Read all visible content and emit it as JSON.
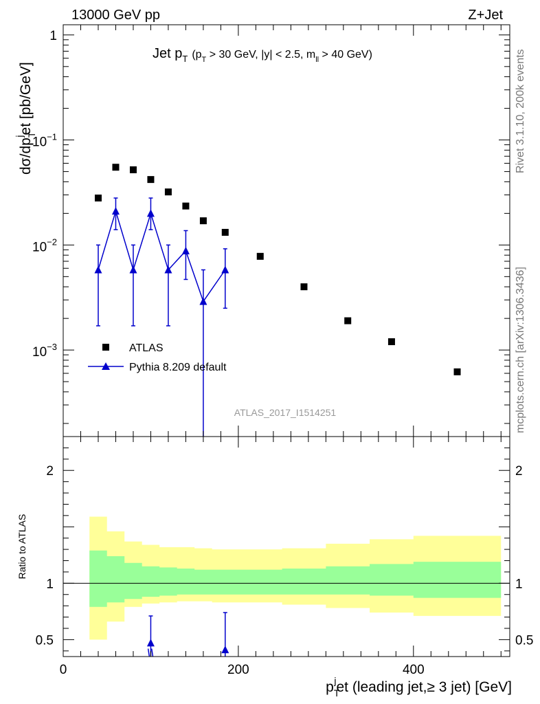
{
  "header": {
    "energy_label": "13000 GeV pp",
    "process_label": "Z+Jet"
  },
  "side_labels": {
    "rivet": "Rivet 3.1.10,  200k events",
    "mcplots": "mcplots.cern.ch [arXiv:1306.3436]"
  },
  "chart_data": {
    "type": "scatter",
    "title": {
      "main": "Jet p",
      "main_sub": "T",
      "cut_open": "(p",
      "cut_sub": "T",
      "cut_mid": " > 30 GeV, |y| < 2.5, m",
      "cut_sub2": "ll",
      "cut_close": " > 40 GeV)"
    },
    "watermark": "ATLAS_2017_I1514251",
    "ylabel": {
      "part1": "dσ/dp",
      "sub": "T",
      "sup": "j",
      "part2": "et [pb/GeV]"
    },
    "xlabel": {
      "part1": "p",
      "sub": "T",
      "sup": "j",
      "part2": "et (leading jet,≥ 3 jet) [GeV]"
    },
    "ratio_ylabel": "Ratio to ATLAS",
    "xlim": [
      0,
      510
    ],
    "ylim": [
      0.00015,
      1.25
    ],
    "yscale": "log",
    "ratio_ylim": [
      0.35,
      2.3
    ],
    "x_ticks": [
      {
        "value": 0,
        "label": "0"
      },
      {
        "value": 200,
        "label": "200"
      },
      {
        "value": 400,
        "label": "400"
      }
    ],
    "y_ticks": [
      {
        "value": 1,
        "label": "1",
        "base": "",
        "exp": ""
      },
      {
        "value": 0.1,
        "label": "",
        "base": "10",
        "exp": "−1"
      },
      {
        "value": 0.01,
        "label": "",
        "base": "10",
        "exp": "−2"
      },
      {
        "value": 0.001,
        "label": "",
        "base": "10",
        "exp": "−3"
      }
    ],
    "ratio_y_ticks": [
      {
        "value": 2,
        "label": "2"
      },
      {
        "value": 1,
        "label": "1"
      },
      {
        "value": 0.5,
        "label": "0.5"
      }
    ],
    "legend": {
      "placement": "lower-left",
      "entries": [
        "ATLAS",
        "Pythia 8.209 default"
      ]
    },
    "series": [
      {
        "name": "ATLAS",
        "color": "#000000",
        "marker": "square",
        "x": [
          40,
          60,
          80,
          100,
          120,
          140,
          160,
          185,
          225,
          275,
          325,
          375,
          450
        ],
        "y": [
          0.028,
          0.055,
          0.052,
          0.042,
          0.032,
          0.0235,
          0.017,
          0.0132,
          0.0078,
          0.004,
          0.0019,
          0.0012,
          0.00062
        ]
      },
      {
        "name": "Pythia 8.209 default",
        "color": "#0000cc",
        "marker": "triangle",
        "x": [
          40,
          60,
          80,
          100,
          120,
          140,
          160,
          185
        ],
        "y": [
          0.0058,
          0.021,
          0.0058,
          0.02,
          0.0058,
          0.0088,
          0.0029,
          0.0058
        ],
        "y_lo": [
          0.0017,
          0.014,
          0.0017,
          0.014,
          0.0017,
          0.0047,
          1e-05,
          0.0025
        ],
        "y_hi": [
          0.01,
          0.028,
          0.01,
          0.028,
          0.01,
          0.0137,
          0.0058,
          0.0092
        ]
      }
    ],
    "ratio": {
      "reference_line": 1,
      "bands": {
        "edges": [
          30,
          50,
          70,
          90,
          110,
          130,
          150,
          170,
          200,
          250,
          300,
          350,
          400,
          500
        ],
        "inner_lo": [
          0.79,
          0.83,
          0.86,
          0.88,
          0.89,
          0.9,
          0.9,
          0.9,
          0.9,
          0.9,
          0.9,
          0.89,
          0.87
        ],
        "inner_hi": [
          1.29,
          1.24,
          1.18,
          1.15,
          1.14,
          1.13,
          1.12,
          1.12,
          1.12,
          1.13,
          1.15,
          1.17,
          1.19
        ],
        "outer_lo": [
          0.5,
          0.66,
          0.79,
          0.82,
          0.83,
          0.84,
          0.84,
          0.83,
          0.83,
          0.81,
          0.78,
          0.74,
          0.71
        ],
        "outer_hi": [
          1.59,
          1.46,
          1.37,
          1.34,
          1.32,
          1.32,
          1.31,
          1.3,
          1.3,
          1.31,
          1.35,
          1.39,
          1.42
        ]
      },
      "pythia": {
        "x": [
          100,
          185
        ],
        "y": [
          0.47,
          0.41
        ],
        "y_lo": [
          0.33,
          0.33
        ],
        "y_hi": [
          0.71,
          0.74
        ]
      }
    }
  }
}
